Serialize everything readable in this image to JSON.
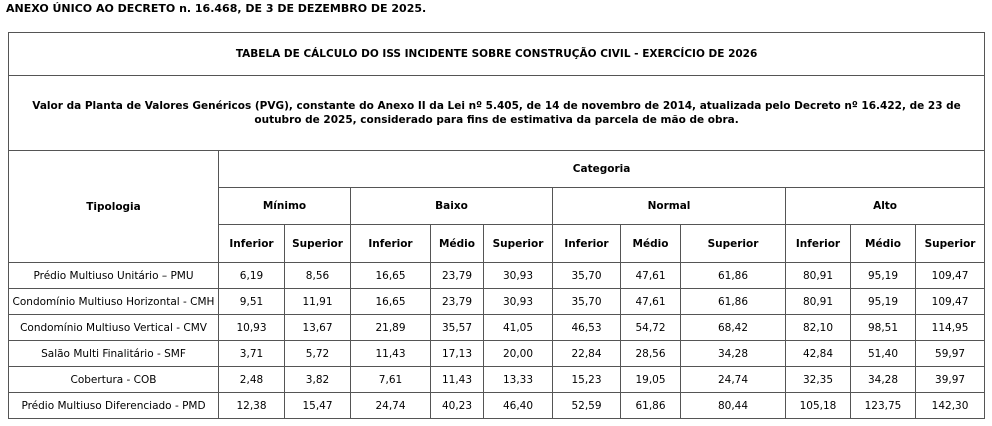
{
  "heading": "ANEXO ÚNICO AO DECRETO n. 16.468, DE 3 DE DEZEMBRO DE 2025.",
  "table": {
    "title": "TABELA DE CÁLCULO DO ISS INCIDENTE SOBRE CONSTRUÇÃO CIVIL - EXERCÍCIO DE 2026",
    "description": "Valor da Planta de Valores Genéricos (PVG), constante do Anexo II da Lei nº 5.405, de 14 de novembro de 2014, atualizada pelo Decreto nº 16.422, de 23 de outubro de 2025, considerado para fins de estimativa da parcela de mão de obra.",
    "category_label": "Categoria",
    "groups": [
      {
        "label": "Mínimo",
        "span": 2
      },
      {
        "label": "Baixo",
        "span": 3
      },
      {
        "label": "Normal",
        "span": 3
      },
      {
        "label": "Alto",
        "span": 3
      }
    ],
    "columns": [
      "Tipologia",
      "Inferior",
      "Superior",
      "Inferior",
      "Médio",
      "Superior",
      "Inferior",
      "Médio",
      "Superior",
      "Inferior",
      "Médio",
      "Superior"
    ],
    "rows": [
      [
        "Prédio Multiuso Unitário – PMU",
        "6,19",
        "8,56",
        "16,65",
        "23,79",
        "30,93",
        "35,70",
        "47,61",
        "61,86",
        "80,91",
        "95,19",
        "109,47"
      ],
      [
        "Condomínio Multiuso Horizontal - CMH",
        "9,51",
        "11,91",
        "16,65",
        "23,79",
        "30,93",
        "35,70",
        "47,61",
        "61,86",
        "80,91",
        "95,19",
        "109,47"
      ],
      [
        "Condomínio Multiuso Vertical - CMV",
        "10,93",
        "13,67",
        "21,89",
        "35,57",
        "41,05",
        "46,53",
        "54,72",
        "68,42",
        "82,10",
        "98,51",
        "114,95"
      ],
      [
        "Salão Multi Finalitário - SMF",
        "3,71",
        "5,72",
        "11,43",
        "17,13",
        "20,00",
        "22,84",
        "28,56",
        "34,28",
        "42,84",
        "51,40",
        "59,97"
      ],
      [
        "Cobertura - COB",
        "2,48",
        "3,82",
        "7,61",
        "11,43",
        "13,33",
        "15,23",
        "19,05",
        "24,74",
        "32,35",
        "34,28",
        "39,97"
      ],
      [
        "Prédio Multiuso Diferenciado - PMD",
        "12,38",
        "15,47",
        "24,74",
        "40,23",
        "46,40",
        "52,59",
        "61,86",
        "80,44",
        "105,18",
        "123,75",
        "142,30"
      ]
    ]
  }
}
